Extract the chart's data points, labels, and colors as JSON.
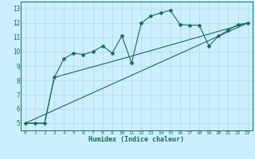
{
  "xlabel": "Humidex (Indice chaleur)",
  "bg_color": "#cceeff",
  "grid_color": "#aadddd",
  "line_color": "#1a6b5a",
  "xlim": [
    -0.5,
    23.5
  ],
  "ylim": [
    4.5,
    13.5
  ],
  "xticks": [
    0,
    1,
    2,
    3,
    4,
    5,
    6,
    7,
    8,
    9,
    10,
    11,
    12,
    13,
    14,
    15,
    16,
    17,
    18,
    19,
    20,
    21,
    22,
    23
  ],
  "yticks": [
    5,
    6,
    7,
    8,
    9,
    10,
    11,
    12,
    13
  ],
  "series1_x": [
    0,
    1,
    2,
    3,
    4,
    5,
    6,
    7,
    8,
    9,
    10,
    11,
    12,
    13,
    14,
    15,
    16,
    17,
    18,
    19,
    20,
    21,
    22,
    23
  ],
  "series1_y": [
    5.0,
    5.0,
    5.0,
    8.2,
    9.5,
    9.9,
    9.8,
    10.0,
    10.4,
    9.9,
    11.1,
    9.2,
    12.0,
    12.5,
    12.7,
    12.9,
    11.9,
    11.85,
    11.85,
    10.4,
    11.1,
    11.5,
    11.9,
    12.0
  ],
  "series2_x": [
    0,
    23
  ],
  "series2_y": [
    5.0,
    12.0
  ],
  "series3_x": [
    0,
    2,
    3,
    10,
    23
  ],
  "series3_y": [
    5.0,
    5.0,
    8.2,
    9.5,
    12.0
  ]
}
